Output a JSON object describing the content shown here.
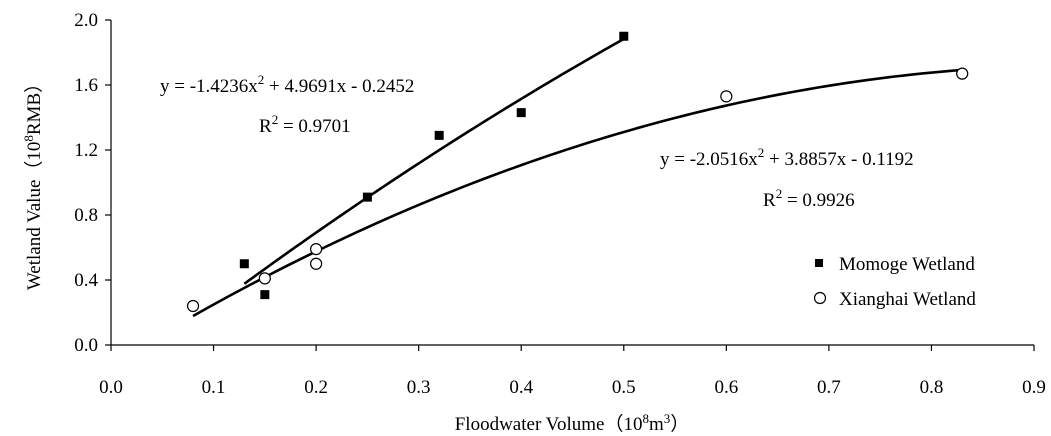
{
  "chart_data": {
    "type": "scatter",
    "xlabel": "Floodwater Volume（10⁸m³）",
    "ylabel": "Wetland Value（10⁸RMB）",
    "xlim": [
      0.0,
      0.9
    ],
    "ylim": [
      0.0,
      2.0
    ],
    "xticks": [
      "0.0",
      "0.1",
      "0.2",
      "0.3",
      "0.4",
      "0.5",
      "0.6",
      "0.7",
      "0.8",
      "0.9"
    ],
    "yticks": [
      "0.0",
      "0.4",
      "0.8",
      "1.2",
      "1.6",
      "2.0"
    ],
    "grid": false,
    "legend_position": "bottom-right",
    "series": [
      {
        "name": "Momoge Wetland",
        "marker": "filled-square",
        "color": "#000000",
        "points": [
          [
            0.13,
            0.5
          ],
          [
            0.15,
            0.31
          ],
          [
            0.25,
            0.91
          ],
          [
            0.32,
            1.29
          ],
          [
            0.4,
            1.43
          ],
          [
            0.5,
            1.9
          ]
        ],
        "trendline": {
          "type": "polynomial-2",
          "coefficients": [
            -0.2452,
            4.9691,
            -1.4236
          ],
          "x_range": [
            0.13,
            0.5
          ],
          "equation": "y = -1.4236x2 + 4.9691x - 0.2452",
          "r2": "R2 = 0.9701"
        }
      },
      {
        "name": "Xianghai Wetland",
        "marker": "open-circle",
        "color": "#000000",
        "points": [
          [
            0.08,
            0.24
          ],
          [
            0.15,
            0.41
          ],
          [
            0.2,
            0.59
          ],
          [
            0.2,
            0.5
          ],
          [
            0.6,
            1.53
          ],
          [
            0.83,
            1.67
          ]
        ],
        "trendline": {
          "type": "polynomial-2",
          "coefficients": [
            -0.1192,
            3.8857,
            -2.0516
          ],
          "x_range": [
            0.08,
            0.83
          ],
          "equation": "y = -2.0516x2 + 3.8857x - 0.1192",
          "r2": "R2 = 0.9926"
        }
      }
    ],
    "labels": {
      "ylabel_pre": "Wetland Value（10",
      "ylabel_sup": "8",
      "ylabel_post": "RMB）",
      "xlabel_pre": "Floodwater Volume（10",
      "xlabel_sup1": "8",
      "xlabel_mid": "m",
      "xlabel_sup2": "3",
      "xlabel_post": "）",
      "momoge_eq_pre": "y = -1.4236x",
      "momoge_eq_sup": "2",
      "momoge_eq_post": " + 4.9691x - 0.2452",
      "momoge_r2_pre": "R",
      "momoge_r2_sup": "2",
      "momoge_r2_post": " = 0.9701",
      "xianghai_eq_pre": "y = -2.0516x",
      "xianghai_eq_sup": "2",
      "xianghai_eq_post": " + 3.8857x - 0.1192",
      "xianghai_r2_pre": "R",
      "xianghai_r2_sup": "2",
      "xianghai_r2_post": " = 0.9926"
    }
  }
}
